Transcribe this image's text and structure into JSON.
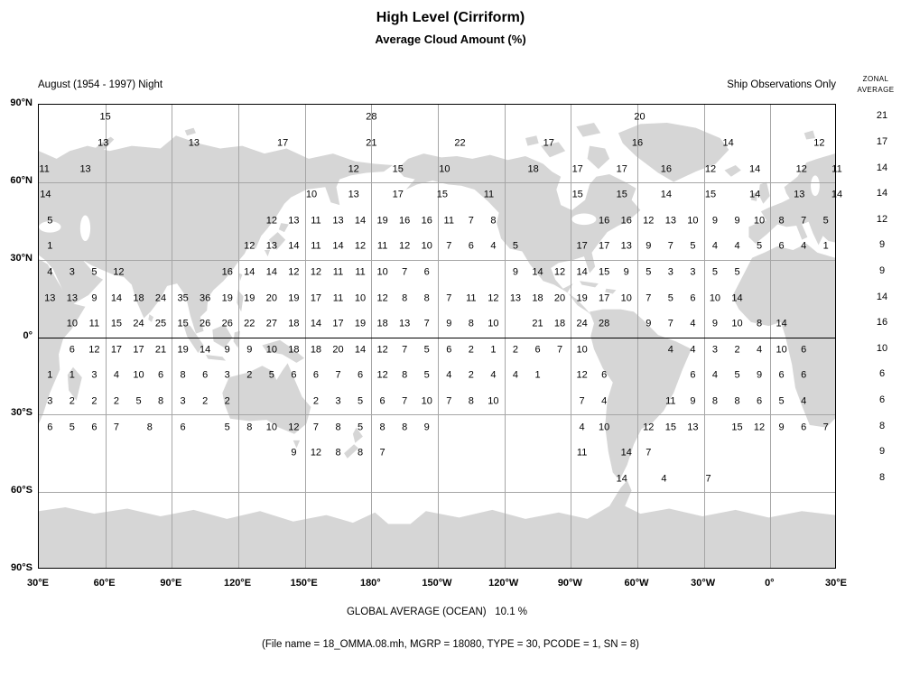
{
  "title": "High Level (Cirriform)",
  "subtitle": "Average Cloud Amount (%)",
  "header": {
    "left": "August (1954 - 1997) Night",
    "right": "Ship Observations Only",
    "zonal_line1": "ZONAL",
    "zonal_line2": "AVERAGE"
  },
  "footer": {
    "global_average": "GLOBAL AVERAGE (OCEAN)   10.1 %",
    "file_info": "(File name = 18_OMMA.08.mh, MGRP = 18080, TYPE = 30, PCODE = 1, SN = 8)"
  },
  "axes": {
    "lat_ticks": [
      "90°N",
      "60°N",
      "30°N",
      "0°",
      "30°S",
      "60°S",
      "90°S"
    ],
    "lon_ticks": [
      "30°E",
      "60°E",
      "90°E",
      "120°E",
      "150°E",
      "180°",
      "150°W",
      "120°W",
      "90°W",
      "60°W",
      "30°W",
      "0°",
      "30°E"
    ]
  },
  "colors": {
    "land": "#d6d6d6",
    "water": "#ffffff",
    "grid": "#a6a6a6",
    "equator": "#000000",
    "frame": "#000000"
  },
  "chart_data": {
    "type": "heatmap",
    "title": "High Level (Cirriform) Average Cloud Amount (%), August (1954 - 1997) Night, Ship Observations Only",
    "cell_format": "[longitude_degrees_east_of_30E_map_left_edge, cloud_amount_percent]",
    "lon_range_deg": [
      0,
      360
    ],
    "lat_range_deg": [
      -90,
      90
    ],
    "global_average_ocean_pct": 10.1,
    "rows": [
      {
        "lat": 85,
        "cells": [
          [
            30,
            15
          ],
          [
            150,
            28
          ],
          [
            271,
            20
          ]
        ]
      },
      {
        "lat": 75,
        "cells": [
          [
            29,
            13
          ],
          [
            70,
            13
          ],
          [
            110,
            17
          ],
          [
            150,
            21
          ],
          [
            190,
            22
          ],
          [
            230,
            17
          ],
          [
            270,
            16
          ],
          [
            311,
            14
          ],
          [
            352,
            12
          ]
        ]
      },
      {
        "lat": 65,
        "cells": [
          [
            2.5,
            11
          ],
          [
            21,
            13
          ],
          [
            142,
            12
          ],
          [
            162,
            15
          ],
          [
            183,
            10
          ],
          [
            223,
            18
          ],
          [
            243,
            17
          ],
          [
            263,
            17
          ],
          [
            283,
            16
          ],
          [
            303,
            12
          ],
          [
            323,
            14
          ],
          [
            344,
            12
          ],
          [
            360,
            11
          ]
        ]
      },
      {
        "lat": 55,
        "cells": [
          [
            3,
            14
          ],
          [
            123,
            10
          ],
          [
            142,
            13
          ],
          [
            162,
            17
          ],
          [
            182,
            15
          ],
          [
            203,
            11
          ],
          [
            243,
            15
          ],
          [
            263,
            15
          ],
          [
            283,
            14
          ],
          [
            303,
            15
          ],
          [
            323,
            14
          ],
          [
            343,
            13
          ],
          [
            360,
            14
          ]
        ]
      },
      {
        "lat": 45,
        "cells": [
          [
            5,
            5
          ],
          [
            105,
            12
          ],
          [
            115,
            13
          ],
          [
            125,
            11
          ],
          [
            135,
            13
          ],
          [
            145,
            14
          ],
          [
            155,
            19
          ],
          [
            165,
            16
          ],
          [
            175,
            16
          ],
          [
            185,
            11
          ],
          [
            195,
            7
          ],
          [
            205,
            8
          ],
          [
            255,
            16
          ],
          [
            265,
            16
          ],
          [
            275,
            12
          ],
          [
            285,
            13
          ],
          [
            295,
            10
          ],
          [
            305,
            9
          ],
          [
            315,
            9
          ],
          [
            325,
            10
          ],
          [
            335,
            8
          ],
          [
            345,
            7
          ],
          [
            355,
            5
          ]
        ]
      },
      {
        "lat": 35,
        "cells": [
          [
            5,
            1
          ],
          [
            95,
            12
          ],
          [
            105,
            13
          ],
          [
            115,
            14
          ],
          [
            125,
            11
          ],
          [
            135,
            14
          ],
          [
            145,
            12
          ],
          [
            155,
            11
          ],
          [
            165,
            12
          ],
          [
            175,
            10
          ],
          [
            185,
            7
          ],
          [
            195,
            6
          ],
          [
            205,
            4
          ],
          [
            215,
            5
          ],
          [
            245,
            17
          ],
          [
            255,
            17
          ],
          [
            265,
            13
          ],
          [
            275,
            9
          ],
          [
            285,
            7
          ],
          [
            295,
            5
          ],
          [
            305,
            4
          ],
          [
            315,
            4
          ],
          [
            325,
            5
          ],
          [
            335,
            6
          ],
          [
            345,
            4
          ],
          [
            355,
            1
          ]
        ]
      },
      {
        "lat": 25,
        "cells": [
          [
            5,
            4
          ],
          [
            15,
            3
          ],
          [
            25,
            5
          ],
          [
            36,
            12
          ],
          [
            85,
            16
          ],
          [
            95,
            14
          ],
          [
            105,
            14
          ],
          [
            115,
            12
          ],
          [
            125,
            12
          ],
          [
            135,
            11
          ],
          [
            145,
            11
          ],
          [
            155,
            10
          ],
          [
            165,
            7
          ],
          [
            175,
            6
          ],
          [
            215,
            9
          ],
          [
            225,
            14
          ],
          [
            235,
            12
          ],
          [
            245,
            14
          ],
          [
            255,
            15
          ],
          [
            265,
            9
          ],
          [
            275,
            5
          ],
          [
            285,
            3
          ],
          [
            295,
            3
          ],
          [
            305,
            5
          ],
          [
            315,
            5
          ]
        ]
      },
      {
        "lat": 15,
        "cells": [
          [
            5,
            13
          ],
          [
            15,
            13
          ],
          [
            25,
            9
          ],
          [
            35,
            14
          ],
          [
            45,
            18
          ],
          [
            55,
            24
          ],
          [
            65,
            35
          ],
          [
            75,
            36
          ],
          [
            85,
            19
          ],
          [
            95,
            19
          ],
          [
            105,
            20
          ],
          [
            115,
            19
          ],
          [
            125,
            17
          ],
          [
            135,
            11
          ],
          [
            145,
            10
          ],
          [
            155,
            12
          ],
          [
            165,
            8
          ],
          [
            175,
            8
          ],
          [
            185,
            7
          ],
          [
            195,
            11
          ],
          [
            205,
            12
          ],
          [
            215,
            13
          ],
          [
            225,
            18
          ],
          [
            235,
            20
          ],
          [
            245,
            19
          ],
          [
            255,
            17
          ],
          [
            265,
            10
          ],
          [
            275,
            7
          ],
          [
            285,
            5
          ],
          [
            295,
            6
          ],
          [
            305,
            10
          ],
          [
            315,
            14
          ]
        ]
      },
      {
        "lat": 5,
        "cells": [
          [
            15,
            10
          ],
          [
            25,
            11
          ],
          [
            35,
            15
          ],
          [
            45,
            24
          ],
          [
            55,
            25
          ],
          [
            65,
            15
          ],
          [
            75,
            26
          ],
          [
            85,
            26
          ],
          [
            95,
            22
          ],
          [
            105,
            27
          ],
          [
            115,
            18
          ],
          [
            125,
            14
          ],
          [
            135,
            17
          ],
          [
            145,
            19
          ],
          [
            155,
            18
          ],
          [
            165,
            13
          ],
          [
            175,
            7
          ],
          [
            185,
            9
          ],
          [
            195,
            8
          ],
          [
            205,
            10
          ],
          [
            225,
            21
          ],
          [
            235,
            18
          ],
          [
            245,
            24
          ],
          [
            255,
            28
          ],
          [
            275,
            9
          ],
          [
            285,
            7
          ],
          [
            295,
            4
          ],
          [
            305,
            9
          ],
          [
            315,
            10
          ],
          [
            325,
            8
          ],
          [
            335,
            14
          ]
        ]
      },
      {
        "lat": -5,
        "cells": [
          [
            15,
            6
          ],
          [
            25,
            12
          ],
          [
            35,
            17
          ],
          [
            45,
            17
          ],
          [
            55,
            21
          ],
          [
            65,
            19
          ],
          [
            75,
            14
          ],
          [
            85,
            9
          ],
          [
            95,
            9
          ],
          [
            105,
            10
          ],
          [
            115,
            18
          ],
          [
            125,
            18
          ],
          [
            135,
            20
          ],
          [
            145,
            14
          ],
          [
            155,
            12
          ],
          [
            165,
            7
          ],
          [
            175,
            5
          ],
          [
            185,
            6
          ],
          [
            195,
            2
          ],
          [
            205,
            1
          ],
          [
            215,
            2
          ],
          [
            225,
            6
          ],
          [
            235,
            7
          ],
          [
            245,
            10
          ],
          [
            285,
            4
          ],
          [
            295,
            4
          ],
          [
            305,
            3
          ],
          [
            315,
            2
          ],
          [
            325,
            4
          ],
          [
            335,
            10
          ],
          [
            345,
            6
          ]
        ]
      },
      {
        "lat": -15,
        "cells": [
          [
            5,
            1
          ],
          [
            15,
            1
          ],
          [
            25,
            3
          ],
          [
            35,
            4
          ],
          [
            45,
            10
          ],
          [
            55,
            6
          ],
          [
            65,
            8
          ],
          [
            75,
            6
          ],
          [
            85,
            3
          ],
          [
            95,
            2
          ],
          [
            105,
            5
          ],
          [
            115,
            6
          ],
          [
            125,
            6
          ],
          [
            135,
            7
          ],
          [
            145,
            6
          ],
          [
            155,
            12
          ],
          [
            165,
            8
          ],
          [
            175,
            5
          ],
          [
            185,
            4
          ],
          [
            195,
            2
          ],
          [
            205,
            4
          ],
          [
            215,
            4
          ],
          [
            225,
            1
          ],
          [
            245,
            12
          ],
          [
            255,
            6
          ],
          [
            295,
            6
          ],
          [
            305,
            4
          ],
          [
            315,
            5
          ],
          [
            325,
            9
          ],
          [
            335,
            6
          ],
          [
            345,
            6
          ]
        ]
      },
      {
        "lat": -25,
        "cells": [
          [
            5,
            3
          ],
          [
            15,
            2
          ],
          [
            25,
            2
          ],
          [
            35,
            2
          ],
          [
            45,
            5
          ],
          [
            55,
            8
          ],
          [
            65,
            3
          ],
          [
            75,
            2
          ],
          [
            85,
            2
          ],
          [
            125,
            2
          ],
          [
            135,
            3
          ],
          [
            145,
            5
          ],
          [
            155,
            6
          ],
          [
            165,
            7
          ],
          [
            175,
            10
          ],
          [
            185,
            7
          ],
          [
            195,
            8
          ],
          [
            205,
            10
          ],
          [
            245,
            7
          ],
          [
            255,
            4
          ],
          [
            285,
            11
          ],
          [
            295,
            9
          ],
          [
            305,
            8
          ],
          [
            315,
            8
          ],
          [
            325,
            6
          ],
          [
            335,
            5
          ],
          [
            345,
            4
          ]
        ]
      },
      {
        "lat": -35,
        "cells": [
          [
            5,
            6
          ],
          [
            15,
            5
          ],
          [
            25,
            6
          ],
          [
            35,
            7
          ],
          [
            50,
            8
          ],
          [
            65,
            6
          ],
          [
            85,
            5
          ],
          [
            95,
            8
          ],
          [
            105,
            10
          ],
          [
            115,
            12
          ],
          [
            125,
            7
          ],
          [
            135,
            8
          ],
          [
            145,
            5
          ],
          [
            155,
            8
          ],
          [
            165,
            8
          ],
          [
            175,
            9
          ],
          [
            245,
            4
          ],
          [
            255,
            10
          ],
          [
            275,
            12
          ],
          [
            285,
            15
          ],
          [
            295,
            13
          ],
          [
            315,
            15
          ],
          [
            325,
            12
          ],
          [
            335,
            9
          ],
          [
            345,
            6
          ],
          [
            355,
            7
          ]
        ]
      },
      {
        "lat": -45,
        "cells": [
          [
            115,
            9
          ],
          [
            125,
            12
          ],
          [
            135,
            8
          ],
          [
            145,
            8
          ],
          [
            155,
            7
          ],
          [
            245,
            11
          ],
          [
            265,
            14
          ],
          [
            275,
            7
          ]
        ]
      },
      {
        "lat": -55,
        "cells": [
          [
            263,
            14
          ],
          [
            282,
            4
          ],
          [
            302,
            7
          ]
        ]
      }
    ],
    "zonal_averages": [
      [
        85,
        21
      ],
      [
        75,
        17
      ],
      [
        65,
        14
      ],
      [
        55,
        14
      ],
      [
        45,
        12
      ],
      [
        35,
        9
      ],
      [
        25,
        9
      ],
      [
        15,
        14
      ],
      [
        5,
        16
      ],
      [
        -5,
        10
      ],
      [
        -15,
        6
      ],
      [
        -25,
        6
      ],
      [
        -35,
        8
      ],
      [
        -45,
        9
      ],
      [
        -55,
        8
      ]
    ]
  }
}
